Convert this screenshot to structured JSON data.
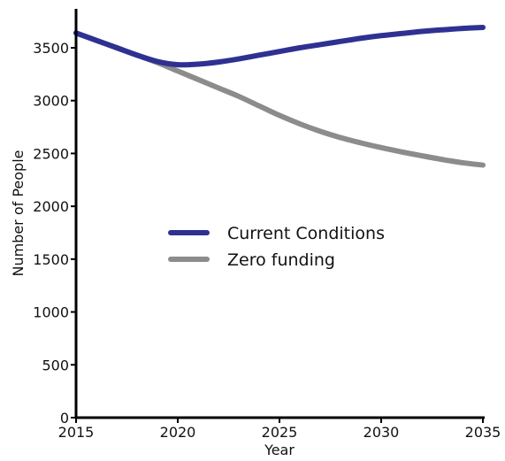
{
  "chart_data": {
    "type": "line",
    "title": "",
    "xlabel": "Year",
    "ylabel": "Number of People",
    "xlim": [
      2015,
      2035
    ],
    "ylim": [
      0,
      3850
    ],
    "xticks": [
      2015,
      2020,
      2025,
      2030,
      2035
    ],
    "yticks": [
      0,
      500,
      1000,
      1500,
      2000,
      2500,
      3000,
      3500
    ],
    "grid": false,
    "legend_position": "center",
    "series": [
      {
        "name": "Current Conditions",
        "color": "#2e3192",
        "x": [
          2015,
          2016,
          2017,
          2018,
          2019,
          2020,
          2021,
          2022,
          2023,
          2024,
          2025,
          2026,
          2027,
          2028,
          2029,
          2030,
          2031,
          2032,
          2033,
          2034,
          2035
        ],
        "y": [
          3640,
          3570,
          3500,
          3430,
          3370,
          3340,
          3345,
          3365,
          3395,
          3430,
          3465,
          3500,
          3530,
          3560,
          3590,
          3615,
          3635,
          3655,
          3670,
          3683,
          3693
        ]
      },
      {
        "name": "Zero funding",
        "color": "#8c8c8c",
        "x": [
          2015,
          2016,
          2017,
          2018,
          2019,
          2020,
          2021,
          2022,
          2023,
          2024,
          2025,
          2026,
          2027,
          2028,
          2029,
          2030,
          2031,
          2032,
          2033,
          2034,
          2035
        ],
        "y": [
          3640,
          3570,
          3500,
          3430,
          3360,
          3280,
          3200,
          3120,
          3040,
          2950,
          2860,
          2780,
          2710,
          2650,
          2600,
          2555,
          2515,
          2478,
          2443,
          2412,
          2390
        ]
      }
    ]
  }
}
